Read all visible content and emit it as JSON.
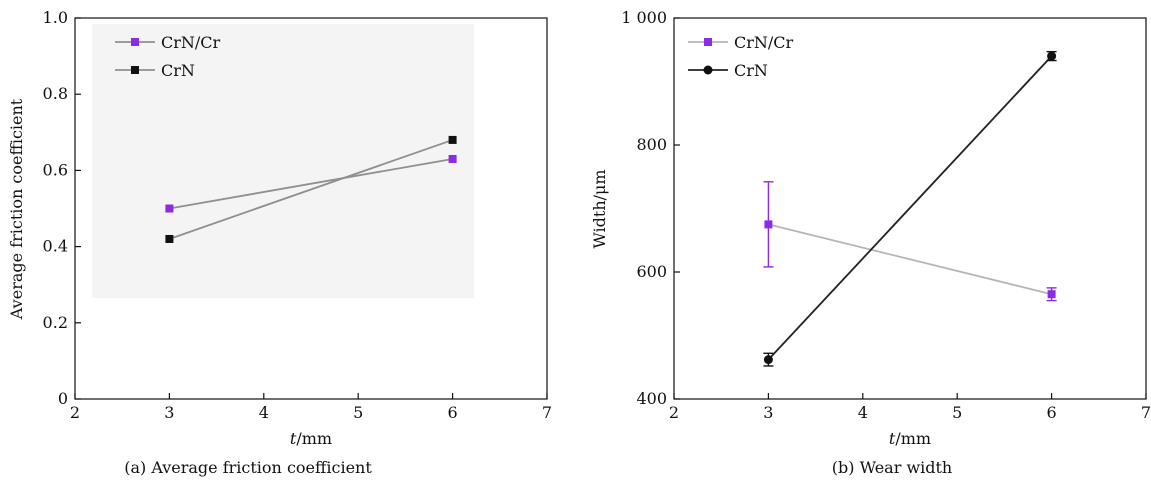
{
  "chart_data": [
    {
      "type": "line",
      "caption": "(a) Average friction coefficient",
      "xlabel_italic": "t",
      "xlabel_unit": "/mm",
      "ylabel": "Average friction coefficient",
      "xlim": [
        2,
        7
      ],
      "ylim": [
        0,
        1.0
      ],
      "x_ticks": [
        "2",
        "3",
        "4",
        "5",
        "6",
        "7"
      ],
      "y_ticks": [
        "0",
        "0.2",
        "0.4",
        "0.6",
        "0.8",
        "1.0"
      ],
      "legend_position": "top-left",
      "series": [
        {
          "name": "CrN/Cr",
          "x": [
            3,
            6
          ],
          "y": [
            0.5,
            0.63
          ],
          "marker": "square",
          "marker_color": "#8b2be2",
          "line_color": "#8f8f8f"
        },
        {
          "name": "CrN",
          "x": [
            3,
            6
          ],
          "y": [
            0.42,
            0.68
          ],
          "marker": "square",
          "marker_color": "#111111",
          "line_color": "#8f8f8f"
        }
      ]
    },
    {
      "type": "line",
      "caption": "(b) Wear width",
      "xlabel_italic": "t",
      "xlabel_unit": "/mm",
      "ylabel": "Width/μm",
      "xlim": [
        2,
        7
      ],
      "ylim": [
        400,
        1000
      ],
      "x_ticks": [
        "2",
        "3",
        "4",
        "5",
        "6",
        "7"
      ],
      "y_ticks": [
        "400",
        "600",
        "800",
        "1 000"
      ],
      "legend_position": "top-left",
      "series": [
        {
          "name": "CrN/Cr",
          "x": [
            3,
            6
          ],
          "y": [
            675,
            565
          ],
          "error": [
            67,
            10
          ],
          "marker": "square",
          "marker_color": "#8b2be2",
          "line_color": "#b5b5b5"
        },
        {
          "name": "CrN",
          "x": [
            3,
            6
          ],
          "y": [
            462,
            940
          ],
          "error": [
            10,
            7
          ],
          "marker": "circle",
          "marker_color": "#111111",
          "line_color": "#222222"
        }
      ]
    }
  ]
}
